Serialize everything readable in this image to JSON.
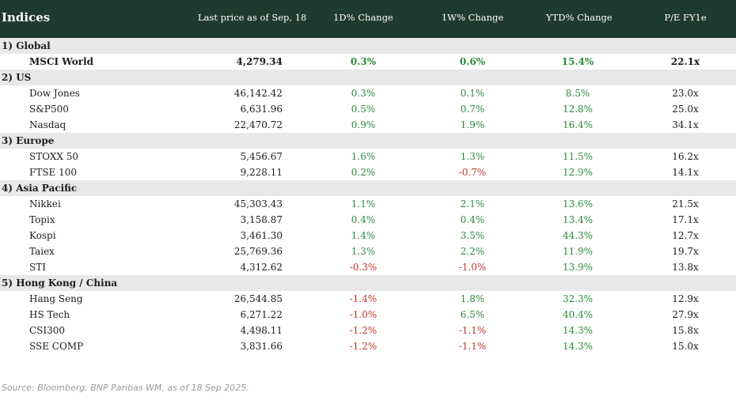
{
  "header": {
    "title": "Indices",
    "col_price": "Last price as of Sep, 18",
    "col_d1": "1D% Change",
    "col_w1": "1W% Change",
    "col_ytd": "YTD% Change",
    "col_pe": "P/E FY1e"
  },
  "colors": {
    "header_bg": "#1f3a2e",
    "group_bg": "#e7e9e8",
    "positive": "#2e8b3a",
    "negative": "#c0392b"
  },
  "groups": [
    {
      "label": "1) Global",
      "rows": [
        {
          "name": "MSCI World",
          "price": "4,279.34",
          "d1": "0.3%",
          "w1": "0.6%",
          "ytd": "15.4%",
          "pe": "22.1x",
          "bold": true
        }
      ]
    },
    {
      "label": "2) US",
      "rows": [
        {
          "name": "Dow Jones",
          "price": "46,142.42",
          "d1": "0.3%",
          "w1": "0.1%",
          "ytd": "8.5%",
          "pe": "23.0x"
        },
        {
          "name": "S&P500",
          "price": "6,631.96",
          "d1": "0.5%",
          "w1": "0.7%",
          "ytd": "12.8%",
          "pe": "25.0x"
        },
        {
          "name": "Nasdaq",
          "price": "22,470.72",
          "d1": "0.9%",
          "w1": "1.9%",
          "ytd": "16.4%",
          "pe": "34.1x"
        }
      ]
    },
    {
      "label": "3) Europe",
      "rows": [
        {
          "name": "STOXX 50",
          "price": "5,456.67",
          "d1": "1.6%",
          "w1": "1.3%",
          "ytd": "11.5%",
          "pe": "16.2x"
        },
        {
          "name": "FTSE 100",
          "price": "9,228.11",
          "d1": "0.2%",
          "w1": "-0.7%",
          "ytd": "12.9%",
          "pe": "14.1x"
        }
      ]
    },
    {
      "label": "4) Asia Pacific",
      "rows": [
        {
          "name": "Nikkei",
          "price": "45,303.43",
          "d1": "1.1%",
          "w1": "2.1%",
          "ytd": "13.6%",
          "pe": "21.5x"
        },
        {
          "name": "Topix",
          "price": "3,158.87",
          "d1": "0.4%",
          "w1": "0.4%",
          "ytd": "13.4%",
          "pe": "17.1x"
        },
        {
          "name": "Kospi",
          "price": "3,461.30",
          "d1": "1.4%",
          "w1": "3.5%",
          "ytd": "44.3%",
          "pe": "12.7x"
        },
        {
          "name": "Taiex",
          "price": "25,769.36",
          "d1": "1.3%",
          "w1": "2.2%",
          "ytd": "11.9%",
          "pe": "19.7x"
        },
        {
          "name": "STI",
          "price": "4,312.62",
          "d1": "-0.3%",
          "w1": "-1.0%",
          "ytd": "13.9%",
          "pe": "13.8x"
        }
      ]
    },
    {
      "label": "5) Hong Kong / China",
      "rows": [
        {
          "name": "Hang Seng",
          "price": "26,544.85",
          "d1": "-1.4%",
          "w1": "1.8%",
          "ytd": "32.3%",
          "pe": "12.9x"
        },
        {
          "name": "HS Tech",
          "price": "6,271.22",
          "d1": "-1.0%",
          "w1": "6.5%",
          "ytd": "40.4%",
          "pe": "27.9x"
        },
        {
          "name": "CSI300",
          "price": "4,498.11",
          "d1": "-1.2%",
          "w1": "-1.1%",
          "ytd": "14.3%",
          "pe": "15.8x"
        },
        {
          "name": "SSE COMP",
          "price": "3,831.66",
          "d1": "-1.2%",
          "w1": "-1.1%",
          "ytd": "14.3%",
          "pe": "15.0x"
        }
      ]
    }
  ],
  "source": "Source: Bloomberg, BNP Paribas WM, as of 18 Sep 2025."
}
